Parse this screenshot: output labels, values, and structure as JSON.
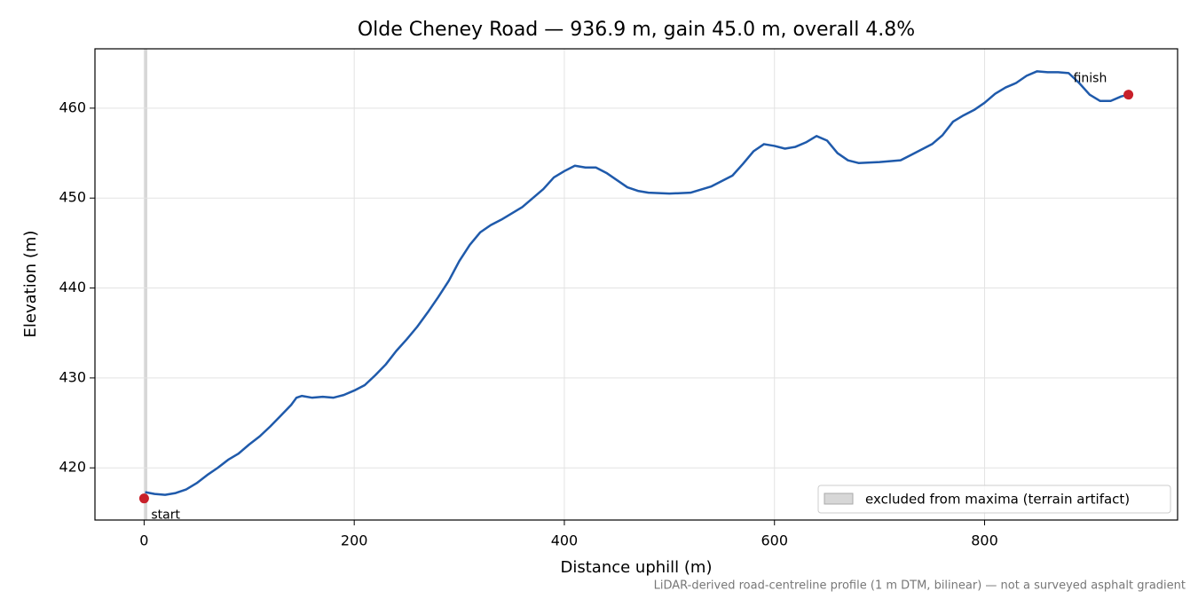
{
  "chart_data": {
    "type": "line",
    "title": "Olde Cheney Road — 936.9 m, gain 45.0 m, overall 4.8%",
    "xlabel": "Distance uphill (m)",
    "ylabel": "Elevation (m)",
    "note": "LiDAR-derived road-centreline profile (1 m DTM, bilinear) — not a surveyed asphalt gradient",
    "color": "#1f5aab",
    "grid": true,
    "xlim": [
      -46.8,
      983.7
    ],
    "ylim": [
      414.2,
      466.6
    ],
    "xticks": [
      0,
      200,
      400,
      600,
      800
    ],
    "yticks": [
      420,
      430,
      440,
      450,
      460
    ],
    "x": [
      1,
      10,
      20,
      30,
      40,
      50,
      60,
      70,
      80,
      90,
      100,
      110,
      120,
      130,
      140,
      145,
      150,
      160,
      170,
      180,
      190,
      200,
      210,
      220,
      230,
      240,
      250,
      260,
      270,
      280,
      290,
      300,
      310,
      320,
      330,
      340,
      350,
      360,
      370,
      380,
      390,
      400,
      410,
      420,
      430,
      440,
      450,
      460,
      470,
      480,
      500,
      520,
      540,
      560,
      570,
      580,
      590,
      600,
      610,
      620,
      630,
      640,
      650,
      660,
      670,
      680,
      700,
      720,
      730,
      750,
      760,
      770,
      780,
      790,
      800,
      810,
      820,
      830,
      840,
      850,
      860,
      870,
      880,
      890,
      900,
      910,
      920,
      930,
      936.9
    ],
    "values": [
      417.3,
      417.1,
      417.0,
      417.2,
      417.6,
      418.3,
      419.2,
      420.0,
      420.9,
      421.6,
      422.6,
      423.5,
      424.6,
      425.8,
      427.0,
      427.8,
      428.0,
      427.8,
      427.9,
      427.8,
      428.1,
      428.6,
      429.2,
      430.3,
      431.5,
      433.0,
      434.3,
      435.7,
      437.3,
      439.0,
      440.8,
      443.0,
      444.8,
      446.2,
      447.0,
      447.6,
      448.3,
      449.0,
      450.0,
      451.0,
      452.3,
      453.0,
      453.6,
      453.4,
      453.4,
      452.8,
      452.0,
      451.2,
      450.8,
      450.6,
      450.5,
      450.6,
      451.3,
      452.5,
      453.8,
      455.2,
      456.0,
      455.8,
      455.5,
      455.7,
      456.2,
      456.9,
      456.4,
      455.0,
      454.2,
      453.9,
      454.0,
      454.2,
      454.8,
      456.0,
      457.0,
      458.5,
      459.2,
      459.8,
      460.6,
      461.6,
      462.3,
      462.8,
      463.6,
      464.1,
      464.0,
      464.0,
      463.9,
      462.8,
      461.5,
      460.8,
      460.8,
      461.3,
      461.5
    ],
    "markers": [
      {
        "label": "start",
        "x": 0,
        "y": 416.6,
        "color": "#c8202a"
      },
      {
        "label": "finish",
        "x": 936.9,
        "y": 461.5,
        "color": "#c8202a"
      }
    ],
    "span": {
      "label": "excluded from maxima (terrain artifact)",
      "x": [
        0,
        3
      ],
      "color": "#bdbdbd"
    },
    "legend": "lower right"
  }
}
